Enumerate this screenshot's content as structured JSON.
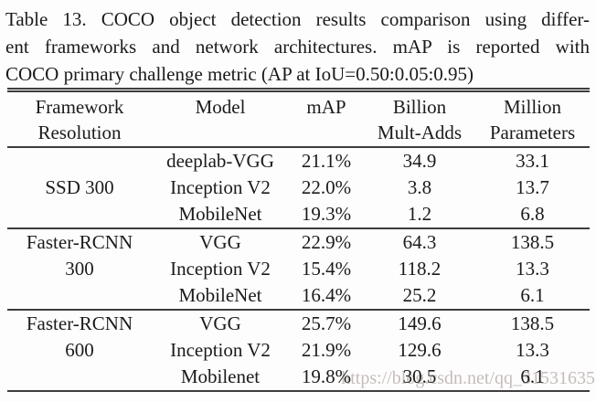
{
  "caption": {
    "lines": [
      "Table 13. COCO object detection results comparison using differ-",
      "ent frameworks and network architectures. mAP is reported with",
      "COCO primary challenge metric (AP at IoU=0.50:0.05:0.95)"
    ]
  },
  "table": {
    "col_headers": [
      {
        "line1": "Framework",
        "line2": "Resolution"
      },
      {
        "line1": "Model",
        "line2": ""
      },
      {
        "line1": "mAP",
        "line2": ""
      },
      {
        "line1": "Billion",
        "line2": "Mult-Adds"
      },
      {
        "line1": "Million",
        "line2": "Parameters"
      }
    ],
    "groups": [
      {
        "framework": {
          "line1": "SSD 300",
          "line2": ""
        },
        "rows": [
          {
            "model": "deeplab-VGG",
            "map": "21.1%",
            "billion_mult_adds": "34.9",
            "million_parameters": "33.1"
          },
          {
            "model": "Inception V2",
            "map": "22.0%",
            "billion_mult_adds": "3.8",
            "million_parameters": "13.7"
          },
          {
            "model": "MobileNet",
            "map": "19.3%",
            "billion_mult_adds": "1.2",
            "million_parameters": "6.8"
          }
        ]
      },
      {
        "framework": {
          "line1": "Faster-RCNN",
          "line2": "300"
        },
        "rows": [
          {
            "model": "VGG",
            "map": "22.9%",
            "billion_mult_adds": "64.3",
            "million_parameters": "138.5"
          },
          {
            "model": "Inception V2",
            "map": "15.4%",
            "billion_mult_adds": "118.2",
            "million_parameters": "13.3"
          },
          {
            "model": "MobileNet",
            "map": "16.4%",
            "billion_mult_adds": "25.2",
            "million_parameters": "6.1"
          }
        ]
      },
      {
        "framework": {
          "line1": "Faster-RCNN",
          "line2": "600"
        },
        "rows": [
          {
            "model": "VGG",
            "map": "25.7%",
            "billion_mult_adds": "149.6",
            "million_parameters": "138.5"
          },
          {
            "model": "Inception V2",
            "map": "21.9%",
            "billion_mult_adds": "129.6",
            "million_parameters": "13.3"
          },
          {
            "model": "Mobilenet",
            "map": "19.8%",
            "billion_mult_adds": "30.5",
            "million_parameters": "6.1"
          }
        ]
      }
    ]
  },
  "watermark": {
    "text": "https://blog.csdn.net/qq_31531635",
    "color": "#c6bcba"
  },
  "colors": {
    "text": "#1b1b1b",
    "rule": "#3d3d3d",
    "background": "#fdfdfd"
  }
}
